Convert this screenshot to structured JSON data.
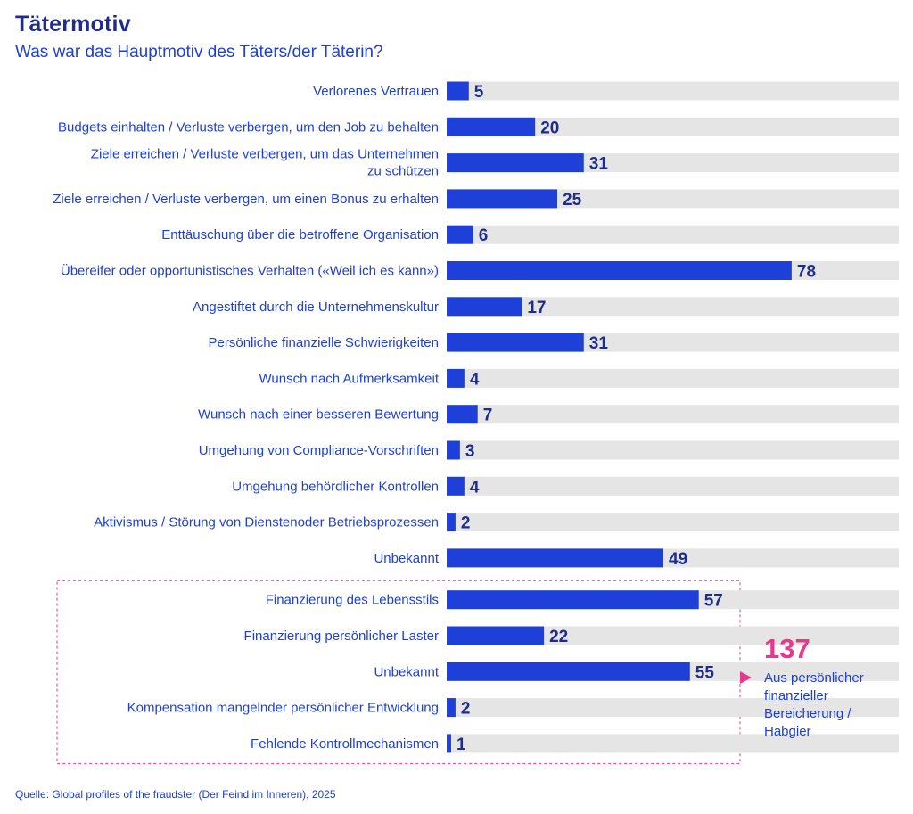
{
  "title": "Tätermotiv",
  "subtitle": "Was war das Hauptmotiv des Täters/der Täterin?",
  "source": "Quelle: Global profiles of the fraudster (Der Feind im Inneren), 2025",
  "colors": {
    "bar": "#1e40d8",
    "track": "#e5e5e5",
    "label": "#1e40d8",
    "value": "#1f2c8f",
    "accent": "#e8378f"
  },
  "callout": {
    "total": "137",
    "label": "Aus persönlicher finanzieller Bereicherung / Habgier"
  },
  "chart_data": {
    "type": "bar",
    "orientation": "horizontal",
    "categories": [
      "Verlorenes Vertrauen",
      "Budgets einhalten / Verluste verbergen, um den Job zu behalten",
      "Ziele erreichen / Verluste verbergen, um das Unternehmen zu schützen",
      "Ziele erreichen / Verluste verbergen, um einen Bonus zu erhalten",
      "Enttäuschung über die betroffene Organisation",
      "Übereifer oder opportunistisches Verhalten («Weil ich es kann»)",
      "Angestiftet durch die Unternehmenskultur",
      "Persönliche finanzielle Schwierigkeiten",
      "Wunsch nach Aufmerksamkeit",
      "Wunsch nach einer besseren Bewertung",
      "Umgehung von Compliance-Vorschriften",
      "Umgehung behördlicher Kontrollen",
      "Aktivismus / Störung von Dienstenoder Betriebsprozessen",
      "Unbekannt",
      "Finanzierung des Lebensstils",
      "Finanzierung persönlicher Laster",
      "Unbekannt",
      "Kompensation mangelnder persönlicher Entwicklung",
      "Fehlende Kontrollmechanismen"
    ],
    "values": [
      5,
      20,
      31,
      25,
      6,
      78,
      17,
      31,
      4,
      7,
      3,
      4,
      2,
      49,
      57,
      22,
      55,
      2,
      1
    ],
    "group": {
      "indices": [
        14,
        15,
        16,
        17,
        18
      ],
      "total": 137,
      "label": "Aus persönlicher finanzieller Bereicherung / Habgier"
    },
    "xlim": [
      0,
      103
    ],
    "grid": false,
    "legend": "none"
  }
}
